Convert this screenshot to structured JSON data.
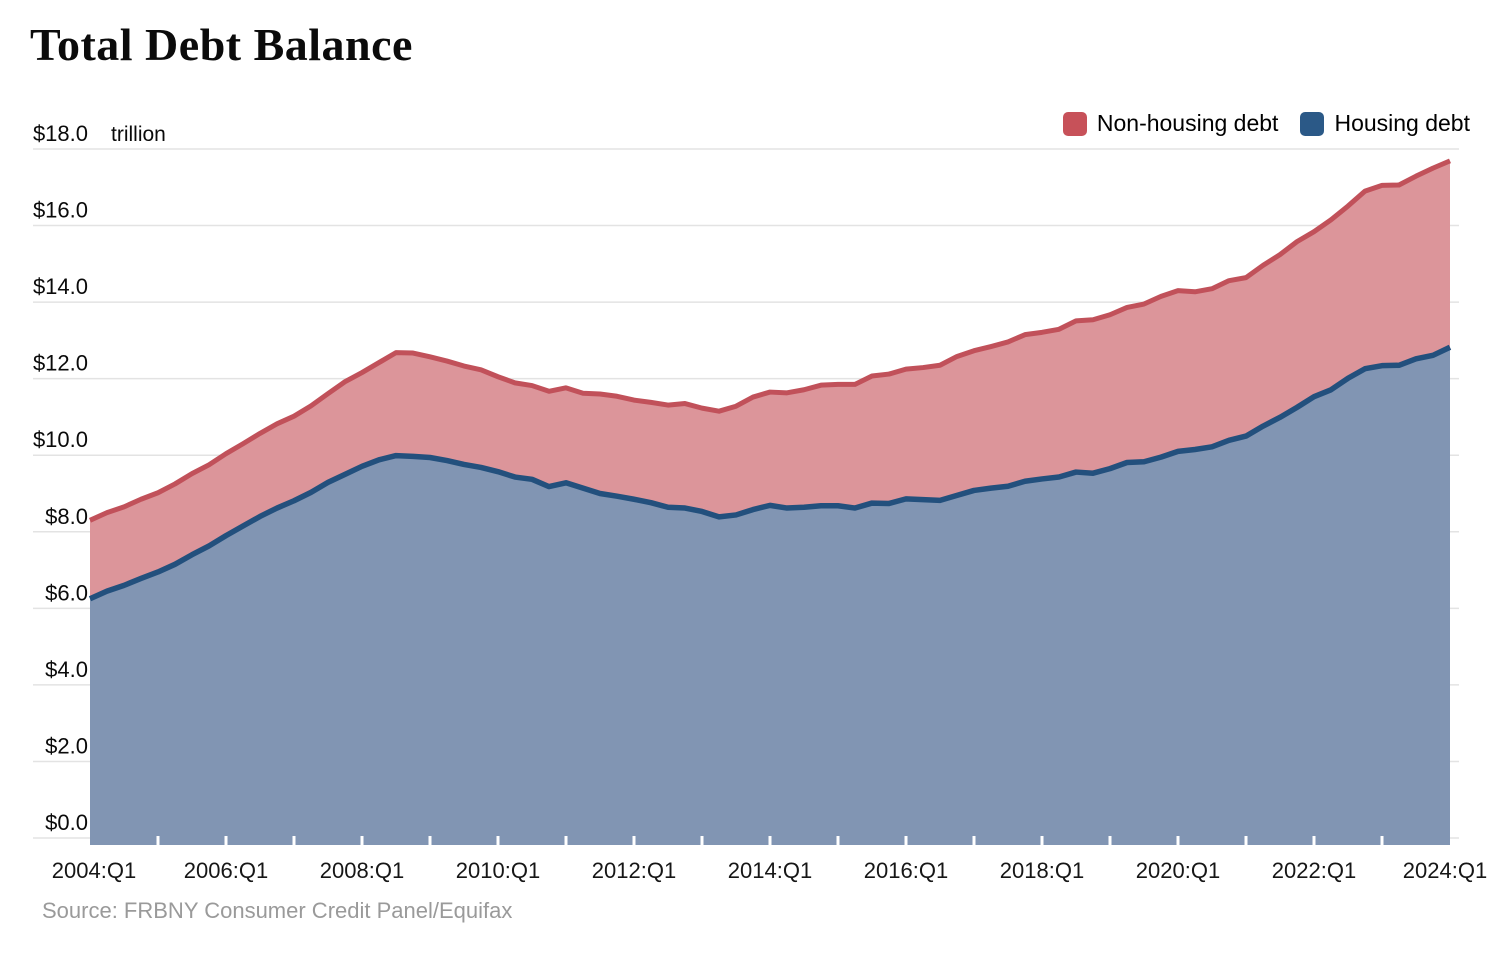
{
  "chart_data": {
    "type": "area",
    "stacked": true,
    "title": "Total Debt Balance",
    "unit_label": "trillion",
    "source": "Source: FRBNY Consumer Credit Panel/Equifax",
    "legend_position": "top-right",
    "grid": true,
    "y_max": 18,
    "y_ticks": [
      {
        "value": 0,
        "label": "$0.0"
      },
      {
        "value": 2,
        "label": "$2.0"
      },
      {
        "value": 4,
        "label": "$4.0"
      },
      {
        "value": 6,
        "label": "$6.0"
      },
      {
        "value": 8,
        "label": "$8.0"
      },
      {
        "value": 10,
        "label": "$10.0"
      },
      {
        "value": 12,
        "label": "$12.0"
      },
      {
        "value": 14,
        "label": "$14.0"
      },
      {
        "value": 16,
        "label": "$16.0"
      },
      {
        "value": 18,
        "label": "$18.0"
      }
    ],
    "x_tick_labels": [
      "2004:Q1",
      "2006:Q1",
      "2008:Q1",
      "2010:Q1",
      "2012:Q1",
      "2014:Q1",
      "2016:Q1",
      "2018:Q1",
      "2020:Q1",
      "2022:Q1",
      "2024:Q1"
    ],
    "quarters": [
      "2004:Q1",
      "2004:Q2",
      "2004:Q3",
      "2004:Q4",
      "2005:Q1",
      "2005:Q2",
      "2005:Q3",
      "2005:Q4",
      "2006:Q1",
      "2006:Q2",
      "2006:Q3",
      "2006:Q4",
      "2007:Q1",
      "2007:Q2",
      "2007:Q3",
      "2007:Q4",
      "2008:Q1",
      "2008:Q2",
      "2008:Q3",
      "2008:Q4",
      "2009:Q1",
      "2009:Q2",
      "2009:Q3",
      "2009:Q4",
      "2010:Q1",
      "2010:Q2",
      "2010:Q3",
      "2010:Q4",
      "2011:Q1",
      "2011:Q2",
      "2011:Q3",
      "2011:Q4",
      "2012:Q1",
      "2012:Q2",
      "2012:Q3",
      "2012:Q4",
      "2013:Q1",
      "2013:Q2",
      "2013:Q3",
      "2013:Q4",
      "2014:Q1",
      "2014:Q2",
      "2014:Q3",
      "2014:Q4",
      "2015:Q1",
      "2015:Q2",
      "2015:Q3",
      "2015:Q4",
      "2016:Q1",
      "2016:Q2",
      "2016:Q3",
      "2016:Q4",
      "2017:Q1",
      "2017:Q2",
      "2017:Q3",
      "2017:Q4",
      "2018:Q1",
      "2018:Q2",
      "2018:Q3",
      "2018:Q4",
      "2019:Q1",
      "2019:Q2",
      "2019:Q3",
      "2019:Q4",
      "2020:Q1",
      "2020:Q2",
      "2020:Q3",
      "2020:Q4",
      "2021:Q1",
      "2021:Q2",
      "2021:Q3",
      "2021:Q4",
      "2022:Q1",
      "2022:Q2",
      "2022:Q3",
      "2022:Q4",
      "2023:Q1",
      "2023:Q2",
      "2023:Q3",
      "2023:Q4",
      "2024:Q1"
    ],
    "series": [
      {
        "name": "Housing debt",
        "line_color": "#23507d",
        "fill_color": "#8195b3",
        "values": [
          6.25,
          6.45,
          6.6,
          6.78,
          6.95,
          7.15,
          7.4,
          7.63,
          7.9,
          8.15,
          8.4,
          8.62,
          8.81,
          9.03,
          9.29,
          9.5,
          9.71,
          9.88,
          9.99,
          9.97,
          9.94,
          9.86,
          9.76,
          9.68,
          9.57,
          9.43,
          9.37,
          9.18,
          9.28,
          9.14,
          9.0,
          8.93,
          8.85,
          8.76,
          8.64,
          8.62,
          8.53,
          8.39,
          8.44,
          8.58,
          8.69,
          8.62,
          8.64,
          8.68,
          8.68,
          8.62,
          8.75,
          8.74,
          8.86,
          8.84,
          8.82,
          8.95,
          9.08,
          9.14,
          9.19,
          9.32,
          9.38,
          9.43,
          9.56,
          9.53,
          9.65,
          9.81,
          9.83,
          9.95,
          10.1,
          10.15,
          10.22,
          10.39,
          10.5,
          10.76,
          10.99,
          11.25,
          11.53,
          11.71,
          12.01,
          12.26,
          12.34,
          12.35,
          12.52,
          12.61,
          12.82
        ]
      },
      {
        "name": "Non-housing debt",
        "line_color": "#c1515a",
        "fill_color": "#dc959a",
        "values": [
          2.05,
          2.05,
          2.05,
          2.07,
          2.07,
          2.1,
          2.12,
          2.12,
          2.14,
          2.15,
          2.17,
          2.2,
          2.21,
          2.26,
          2.32,
          2.42,
          2.45,
          2.54,
          2.69,
          2.7,
          2.63,
          2.6,
          2.57,
          2.55,
          2.48,
          2.46,
          2.45,
          2.49,
          2.48,
          2.48,
          2.6,
          2.61,
          2.59,
          2.62,
          2.67,
          2.73,
          2.7,
          2.76,
          2.84,
          2.94,
          2.96,
          3.01,
          3.07,
          3.15,
          3.17,
          3.23,
          3.32,
          3.38,
          3.39,
          3.45,
          3.53,
          3.63,
          3.65,
          3.7,
          3.77,
          3.83,
          3.83,
          3.86,
          3.95,
          4.01,
          4.02,
          4.05,
          4.12,
          4.2,
          4.2,
          4.12,
          4.13,
          4.17,
          4.14,
          4.2,
          4.25,
          4.33,
          4.31,
          4.44,
          4.5,
          4.64,
          4.71,
          4.71,
          4.77,
          4.89,
          4.87
        ]
      }
    ],
    "legend": [
      {
        "label": "Non-housing debt",
        "color": "#c75159"
      },
      {
        "label": "Housing debt",
        "color": "#2b5987"
      }
    ]
  }
}
